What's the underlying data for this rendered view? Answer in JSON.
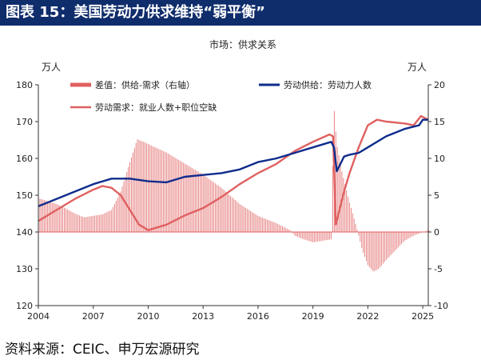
{
  "title": "图表 15：美国劳动力供求维持“弱平衡”",
  "source": "资料来源：CEIC、申万宏源研究",
  "chart_data": {
    "type": "line",
    "subtitle": "市场：供求关系",
    "left_unit": "万人",
    "right_unit": "万人",
    "x_ticks": [
      "2004",
      "2007",
      "2010",
      "2013",
      "2016",
      "2019",
      "2022",
      "2025"
    ],
    "x_range": [
      2004,
      2025.3
    ],
    "y_left": {
      "min": 120,
      "max": 180,
      "ticks": [
        120,
        130,
        140,
        150,
        160,
        170,
        180
      ]
    },
    "y_right": {
      "min": -10,
      "max": 20,
      "ticks": [
        -10,
        -5,
        0,
        5,
        10,
        15,
        20
      ]
    },
    "grid": false,
    "legend_position": "top-left",
    "colors": {
      "gap": "#e06060",
      "demand": "#e06060",
      "supply": "#0f2c8c",
      "axis": "#333333"
    },
    "series": [
      {
        "name": "差值：供给-需求（右轴）",
        "axis": "right",
        "style": "bars",
        "points": [
          [
            2004.0,
            4.6
          ],
          [
            2004.5,
            4.2
          ],
          [
            2005.0,
            3.8
          ],
          [
            2005.5,
            3.2
          ],
          [
            2006.0,
            2.5
          ],
          [
            2006.5,
            2.0
          ],
          [
            2007.0,
            2.2
          ],
          [
            2007.5,
            2.4
          ],
          [
            2008.0,
            3.0
          ],
          [
            2008.5,
            5.5
          ],
          [
            2009.0,
            9.5
          ],
          [
            2009.4,
            12.6
          ],
          [
            2009.8,
            12.2
          ],
          [
            2010.3,
            11.6
          ],
          [
            2011.0,
            10.8
          ],
          [
            2012.0,
            9.3
          ],
          [
            2013.0,
            7.8
          ],
          [
            2014.0,
            6.0
          ],
          [
            2015.0,
            3.8
          ],
          [
            2016.0,
            2.2
          ],
          [
            2017.0,
            1.2
          ],
          [
            2017.8,
            0.2
          ],
          [
            2018.0,
            -0.5
          ],
          [
            2018.5,
            -1.0
          ],
          [
            2019.0,
            -1.4
          ],
          [
            2019.5,
            -1.2
          ],
          [
            2020.0,
            -1.0
          ],
          [
            2020.15,
            17.0
          ],
          [
            2020.3,
            12.0
          ],
          [
            2020.6,
            8.0
          ],
          [
            2021.0,
            4.0
          ],
          [
            2021.4,
            0.5
          ],
          [
            2021.7,
            -2.5
          ],
          [
            2022.0,
            -4.5
          ],
          [
            2022.3,
            -5.4
          ],
          [
            2022.6,
            -5.0
          ],
          [
            2023.0,
            -3.8
          ],
          [
            2023.5,
            -2.5
          ],
          [
            2024.0,
            -1.2
          ],
          [
            2024.5,
            -0.5
          ],
          [
            2025.0,
            0.0
          ],
          [
            2025.3,
            0.2
          ]
        ]
      },
      {
        "name": "劳动需求：就业人数+职位空缺",
        "axis": "left",
        "style": "line",
        "points": [
          [
            2004.0,
            143.0
          ],
          [
            2005.0,
            146.0
          ],
          [
            2006.0,
            149.0
          ],
          [
            2007.0,
            151.5
          ],
          [
            2007.5,
            152.5
          ],
          [
            2008.0,
            152.0
          ],
          [
            2008.5,
            150.0
          ],
          [
            2009.0,
            146.0
          ],
          [
            2009.5,
            142.0
          ],
          [
            2010.0,
            140.5
          ],
          [
            2011.0,
            142.0
          ],
          [
            2012.0,
            144.5
          ],
          [
            2013.0,
            146.5
          ],
          [
            2014.0,
            149.5
          ],
          [
            2015.0,
            153.0
          ],
          [
            2016.0,
            156.0
          ],
          [
            2017.0,
            158.5
          ],
          [
            2018.0,
            162.0
          ],
          [
            2019.0,
            164.5
          ],
          [
            2019.9,
            166.5
          ],
          [
            2020.1,
            166.0
          ],
          [
            2020.25,
            142.0
          ],
          [
            2020.4,
            145.0
          ],
          [
            2020.7,
            151.0
          ],
          [
            2021.0,
            156.0
          ],
          [
            2021.5,
            163.0
          ],
          [
            2022.0,
            169.0
          ],
          [
            2022.5,
            170.5
          ],
          [
            2023.0,
            170.0
          ],
          [
            2024.0,
            169.5
          ],
          [
            2024.5,
            169.0
          ],
          [
            2024.9,
            171.5
          ],
          [
            2025.3,
            170.5
          ]
        ]
      },
      {
        "name": "劳动供给：劳动力人数",
        "axis": "left",
        "style": "line",
        "points": [
          [
            2004.0,
            147.0
          ],
          [
            2005.0,
            149.0
          ],
          [
            2006.0,
            151.0
          ],
          [
            2007.0,
            153.0
          ],
          [
            2008.0,
            154.5
          ],
          [
            2009.0,
            154.5
          ],
          [
            2010.0,
            153.8
          ],
          [
            2011.0,
            153.5
          ],
          [
            2012.0,
            155.0
          ],
          [
            2013.0,
            155.5
          ],
          [
            2014.0,
            156.0
          ],
          [
            2015.0,
            157.0
          ],
          [
            2016.0,
            159.0
          ],
          [
            2017.0,
            160.0
          ],
          [
            2018.0,
            161.5
          ],
          [
            2019.0,
            163.0
          ],
          [
            2020.0,
            164.5
          ],
          [
            2020.15,
            163.0
          ],
          [
            2020.3,
            156.5
          ],
          [
            2020.7,
            160.5
          ],
          [
            2021.0,
            161.0
          ],
          [
            2021.5,
            161.5
          ],
          [
            2022.0,
            163.0
          ],
          [
            2023.0,
            166.0
          ],
          [
            2024.0,
            168.0
          ],
          [
            2024.8,
            169.0
          ],
          [
            2025.0,
            170.5
          ],
          [
            2025.3,
            170.5
          ]
        ]
      }
    ]
  }
}
